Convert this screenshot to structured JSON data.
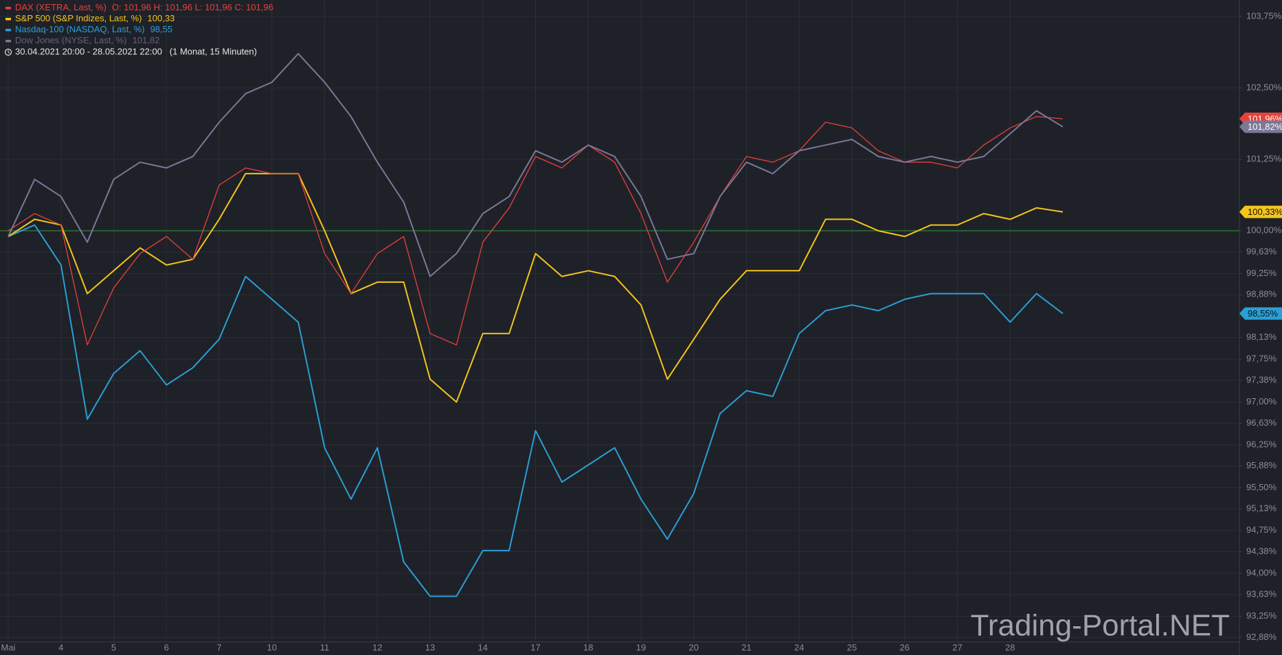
{
  "chart_data": {
    "type": "line",
    "legend_corner": "top-left",
    "range_text": "30.04.2021 20:00 - 28.05.2021 22:00   (1 Monat, 15 Minuten)",
    "watermark": "Trading-Portal.NET",
    "categories": [
      "Mai",
      null,
      "4",
      null,
      "5",
      null,
      "6",
      null,
      "7",
      null,
      "10",
      null,
      "11",
      null,
      "12",
      null,
      "13",
      null,
      "14",
      null,
      "17",
      null,
      "18",
      null,
      "19",
      null,
      "20",
      null,
      "21",
      null,
      "24",
      null,
      "25",
      null,
      "26",
      null,
      "27",
      null,
      "28",
      null,
      null
    ],
    "ylim": [
      92.8,
      104.04
    ],
    "yticks": [
      {
        "value": 103.75,
        "label": "103,75%"
      },
      {
        "value": 102.5,
        "label": "102,50%"
      },
      {
        "value": 101.25,
        "label": "101,25%"
      },
      {
        "value": 100,
        "label": "100,00%"
      },
      {
        "value": 99.63,
        "label": "99,63%"
      },
      {
        "value": 99.25,
        "label": "99,25%"
      },
      {
        "value": 98.88,
        "label": "98,88%"
      },
      {
        "value": 98.13,
        "label": "98,13%"
      },
      {
        "value": 97.75,
        "label": "97,75%"
      },
      {
        "value": 97.38,
        "label": "97,38%"
      },
      {
        "value": 97,
        "label": "97,00%"
      },
      {
        "value": 96.63,
        "label": "96,63%"
      },
      {
        "value": 96.25,
        "label": "96,25%"
      },
      {
        "value": 95.88,
        "label": "95,88%"
      },
      {
        "value": 95.5,
        "label": "95,50%"
      },
      {
        "value": 95.13,
        "label": "95,13%"
      },
      {
        "value": 94.75,
        "label": "94,75%"
      },
      {
        "value": 94.38,
        "label": "94,38%"
      },
      {
        "value": 94,
        "label": "94,00%"
      },
      {
        "value": 93.63,
        "label": "93,63%"
      },
      {
        "value": 93.25,
        "label": "93,25%"
      },
      {
        "value": 92.88,
        "label": "92,88%"
      }
    ],
    "grid": true,
    "reference_line": 100,
    "reference_color": "#2f8f3a",
    "series": [
      {
        "name": "DAX (XETRA, Last, %)",
        "legend_info": "O: 101,96  H: 101,96  L: 101,96  C: 101,96",
        "color": "#e8413b",
        "text_color": "#ffffff",
        "values": [
          100.0,
          100.3,
          100.1,
          98.0,
          99.0,
          99.6,
          99.9,
          99.5,
          100.8,
          101.1,
          101.0,
          101.0,
          99.6,
          98.9,
          99.6,
          99.9,
          98.2,
          98.0,
          99.8,
          100.4,
          101.3,
          101.1,
          101.5,
          101.2,
          100.3,
          99.1,
          99.8,
          100.6,
          101.3,
          101.2,
          101.4,
          101.9,
          101.8,
          101.4,
          101.2,
          101.2,
          101.1,
          101.5,
          101.8,
          102.0,
          101.96
        ],
        "value_labels": [
          null,
          null,
          null,
          null,
          null,
          null,
          null,
          null,
          null,
          null,
          null,
          null,
          null,
          null,
          null,
          null,
          null,
          null,
          null,
          null,
          null,
          null,
          null,
          null,
          null,
          null,
          null,
          null,
          null,
          null,
          null,
          null,
          null,
          null,
          null,
          null,
          null,
          null,
          null,
          null,
          "101,96%"
        ]
      },
      {
        "name": "S&P 500 (S&P Indizes, Last, %)",
        "legend_info": "100,33",
        "color": "#f5c518",
        "text_color": "#111111",
        "values": [
          99.9,
          100.2,
          100.1,
          98.9,
          99.3,
          99.7,
          99.4,
          99.5,
          100.2,
          101.0,
          101.0,
          101.0,
          100.0,
          98.9,
          99.1,
          99.1,
          97.4,
          97.0,
          98.2,
          98.2,
          99.6,
          99.2,
          99.3,
          99.2,
          98.7,
          97.4,
          98.1,
          98.8,
          99.3,
          99.3,
          99.3,
          100.2,
          100.2,
          100.0,
          99.9,
          100.1,
          100.1,
          100.3,
          100.2,
          100.4,
          100.33
        ],
        "value_labels": [
          null,
          null,
          null,
          null,
          null,
          null,
          null,
          null,
          null,
          null,
          null,
          null,
          null,
          null,
          null,
          null,
          null,
          null,
          null,
          null,
          null,
          null,
          null,
          null,
          null,
          null,
          null,
          null,
          null,
          null,
          null,
          null,
          null,
          null,
          null,
          null,
          null,
          null,
          null,
          null,
          "100,33%"
        ]
      },
      {
        "name": "Nasdaq-100 (NASDAQ, Last, %)",
        "legend_info": "98,55",
        "color": "#2a9fd6",
        "text_color": "#111111",
        "values": [
          99.9,
          100.1,
          99.4,
          96.7,
          97.5,
          97.9,
          97.3,
          97.6,
          98.1,
          99.2,
          98.8,
          98.4,
          96.2,
          95.3,
          96.2,
          94.2,
          93.6,
          93.6,
          94.4,
          94.4,
          96.5,
          95.6,
          95.9,
          96.2,
          95.3,
          94.6,
          95.4,
          96.8,
          97.2,
          97.1,
          98.2,
          98.6,
          98.7,
          98.6,
          98.8,
          98.9,
          98.9,
          98.9,
          98.4,
          98.9,
          98.55
        ],
        "value_labels": [
          null,
          null,
          null,
          null,
          null,
          null,
          null,
          null,
          null,
          null,
          null,
          null,
          null,
          null,
          null,
          null,
          null,
          null,
          null,
          null,
          null,
          null,
          null,
          null,
          null,
          null,
          null,
          null,
          null,
          null,
          null,
          null,
          null,
          null,
          null,
          null,
          null,
          null,
          null,
          null,
          "98,55%"
        ]
      },
      {
        "name": "Dow Jones (NYSE, Last, %)",
        "legend_info": "101,82",
        "color": "#7b7898",
        "text_color": "#ffffff",
        "values": [
          99.9,
          100.9,
          100.6,
          99.8,
          100.9,
          101.2,
          101.1,
          101.3,
          101.9,
          102.4,
          102.6,
          103.1,
          102.6,
          102.0,
          101.2,
          100.5,
          99.2,
          99.6,
          100.3,
          100.6,
          101.4,
          101.2,
          101.5,
          101.3,
          100.6,
          99.5,
          99.6,
          100.6,
          101.2,
          101.0,
          101.4,
          101.5,
          101.6,
          101.3,
          101.2,
          101.3,
          101.2,
          101.3,
          101.7,
          102.1,
          101.82
        ],
        "value_labels": [
          null,
          null,
          null,
          null,
          null,
          null,
          null,
          null,
          null,
          null,
          null,
          null,
          null,
          null,
          null,
          null,
          null,
          null,
          null,
          null,
          null,
          null,
          null,
          null,
          null,
          null,
          null,
          null,
          null,
          null,
          null,
          null,
          null,
          null,
          null,
          null,
          null,
          null,
          null,
          null,
          "101,82%"
        ]
      }
    ]
  }
}
